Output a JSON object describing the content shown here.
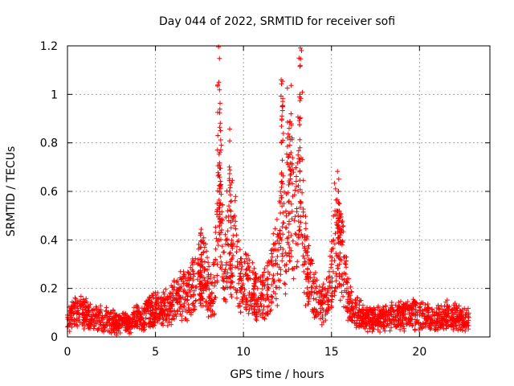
{
  "chart_data": {
    "type": "scatter",
    "title": "Day 044 of 2022, SRMTID for receiver sofi",
    "xlabel": "GPS time / hours",
    "ylabel": "SRMTID / TECUs",
    "xlim": [
      0,
      24
    ],
    "ylim": [
      0,
      1.2
    ],
    "x_ticks": [
      0,
      5,
      10,
      15,
      20
    ],
    "x_tick_labels": [
      "0",
      "5",
      "10",
      "15",
      "20"
    ],
    "y_ticks": [
      0,
      0.2,
      0.4,
      0.6,
      0.8,
      1.0,
      1.2
    ],
    "y_tick_labels": [
      "0",
      "0.2",
      "0.4",
      "0.6",
      "0.8",
      "1",
      "1.2"
    ],
    "grid": true,
    "marker": "plus",
    "marker_color": "#ff0000",
    "series": [
      {
        "name": "SRMTID",
        "envelope_note": "points traced along the visible data cloud (hour, TECU)",
        "x": [
          0.0,
          0.2,
          0.4,
          0.6,
          0.8,
          1.0,
          1.2,
          1.4,
          1.6,
          1.8,
          2.0,
          2.2,
          2.4,
          2.6,
          2.8,
          3.0,
          3.2,
          3.4,
          3.6,
          3.8,
          4.0,
          4.2,
          4.4,
          4.6,
          4.8,
          5.0,
          5.2,
          5.4,
          5.6,
          5.8,
          6.0,
          6.2,
          6.4,
          6.6,
          6.8,
          7.0,
          7.2,
          7.4,
          7.6,
          7.8,
          8.0,
          8.2,
          8.4,
          8.5,
          8.6,
          8.7,
          8.8,
          8.9,
          9.0,
          9.1,
          9.2,
          9.3,
          9.4,
          9.5,
          9.6,
          9.8,
          10.0,
          10.2,
          10.4,
          10.6,
          10.8,
          11.0,
          11.2,
          11.4,
          11.6,
          11.8,
          12.0,
          12.1,
          12.2,
          12.3,
          12.4,
          12.5,
          12.6,
          12.7,
          12.8,
          12.9,
          13.0,
          13.1,
          13.2,
          13.3,
          13.4,
          13.5,
          13.6,
          13.8,
          14.0,
          14.2,
          14.4,
          14.6,
          14.8,
          15.0,
          15.2,
          15.4,
          15.5,
          15.6,
          15.8,
          16.0,
          16.2,
          16.4,
          16.6,
          16.8,
          17.0,
          17.5,
          18.0,
          18.5,
          19.0,
          19.5,
          20.0,
          20.5,
          21.0,
          21.5,
          22.0,
          22.5,
          22.8
        ],
        "y": [
          0.09,
          0.1,
          0.12,
          0.11,
          0.13,
          0.12,
          0.1,
          0.11,
          0.09,
          0.1,
          0.08,
          0.09,
          0.07,
          0.08,
          0.06,
          0.07,
          0.08,
          0.06,
          0.07,
          0.09,
          0.1,
          0.08,
          0.11,
          0.12,
          0.13,
          0.14,
          0.13,
          0.15,
          0.16,
          0.14,
          0.17,
          0.18,
          0.2,
          0.22,
          0.21,
          0.24,
          0.26,
          0.3,
          0.34,
          0.31,
          0.25,
          0.18,
          0.32,
          0.55,
          1.05,
          0.62,
          0.48,
          0.35,
          0.4,
          0.52,
          0.7,
          0.45,
          0.38,
          0.5,
          0.42,
          0.3,
          0.25,
          0.28,
          0.24,
          0.22,
          0.2,
          0.18,
          0.21,
          0.24,
          0.3,
          0.36,
          0.42,
          0.6,
          0.95,
          0.55,
          0.45,
          0.82,
          0.7,
          0.92,
          0.58,
          0.48,
          0.62,
          0.75,
          0.9,
          1.18,
          0.5,
          0.4,
          0.35,
          0.3,
          0.22,
          0.18,
          0.15,
          0.17,
          0.2,
          0.3,
          0.52,
          0.6,
          0.42,
          0.38,
          0.3,
          0.18,
          0.14,
          0.12,
          0.11,
          0.1,
          0.1,
          0.09,
          0.1,
          0.11,
          0.1,
          0.12,
          0.11,
          0.1,
          0.09,
          0.11,
          0.1,
          0.09,
          0.08
        ]
      }
    ]
  }
}
